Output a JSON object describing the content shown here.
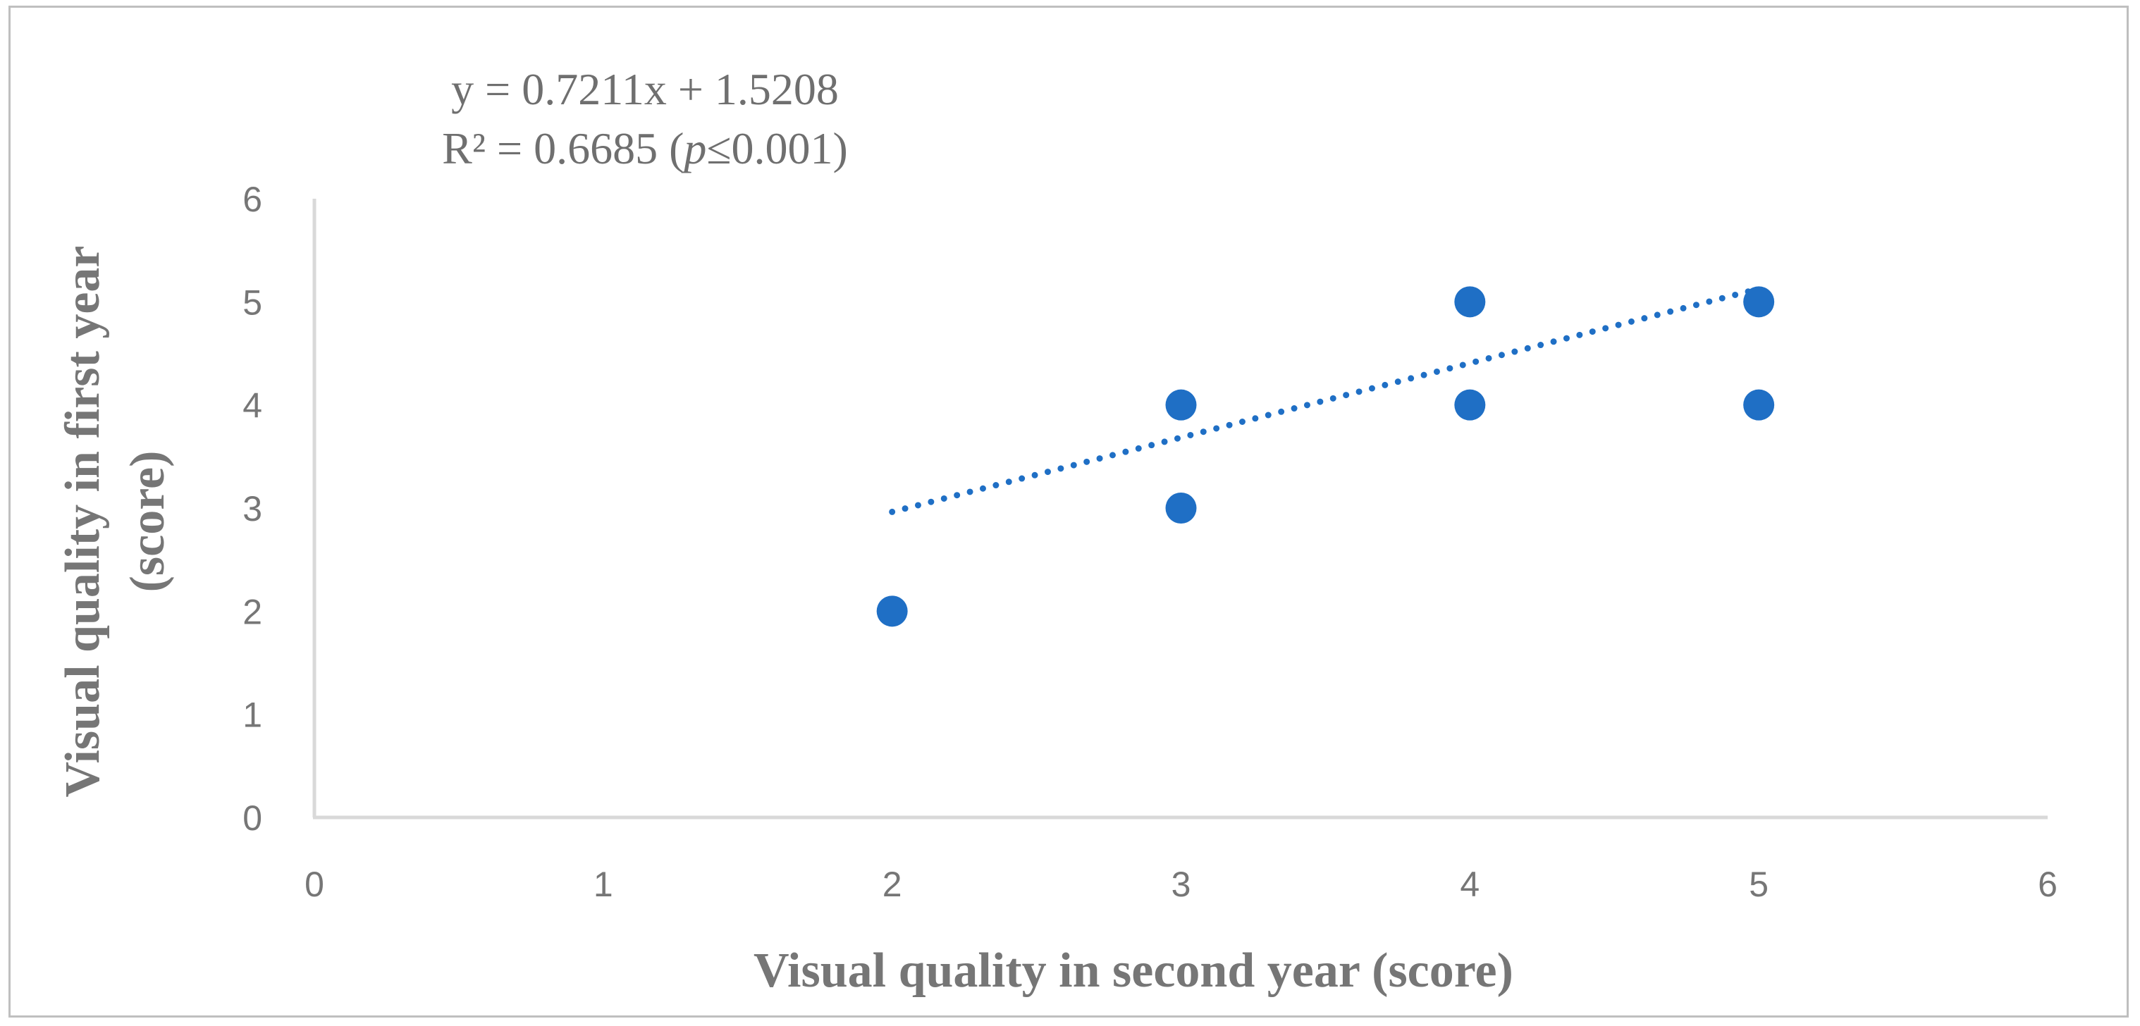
{
  "chart_data": {
    "type": "scatter",
    "xlabel": "Visual quality in second year (score)",
    "ylabel_lines": [
      "Visual quality in first year",
      "(score)"
    ],
    "xlim": [
      0,
      6
    ],
    "ylim": [
      0,
      6
    ],
    "x_ticks": [
      "0",
      "1",
      "2",
      "3",
      "4",
      "5",
      "6"
    ],
    "y_ticks": [
      "0",
      "1",
      "2",
      "3",
      "4",
      "5",
      "6"
    ],
    "grid": false,
    "legend": "none",
    "series": [
      {
        "color": "#1f6fc5",
        "points": [
          {
            "x": 2,
            "y": 2
          },
          {
            "x": 3,
            "y": 3
          },
          {
            "x": 3,
            "y": 4
          },
          {
            "x": 4,
            "y": 4
          },
          {
            "x": 4,
            "y": 5
          },
          {
            "x": 5,
            "y": 4
          },
          {
            "x": 5,
            "y": 5
          }
        ]
      }
    ],
    "trendline": {
      "style": "dotted",
      "color": "#1f6fc5",
      "slope": 0.7211,
      "intercept": 1.5208,
      "x_range": [
        2,
        5
      ],
      "equation_line1": "y = 0.7211x + 1.5208",
      "equation_line2_prefix": "R² = 0.6685 (",
      "equation_line2_italic": "p",
      "equation_line2_suffix": "≤0.001)"
    },
    "axis_color": "#d9d9d9"
  }
}
